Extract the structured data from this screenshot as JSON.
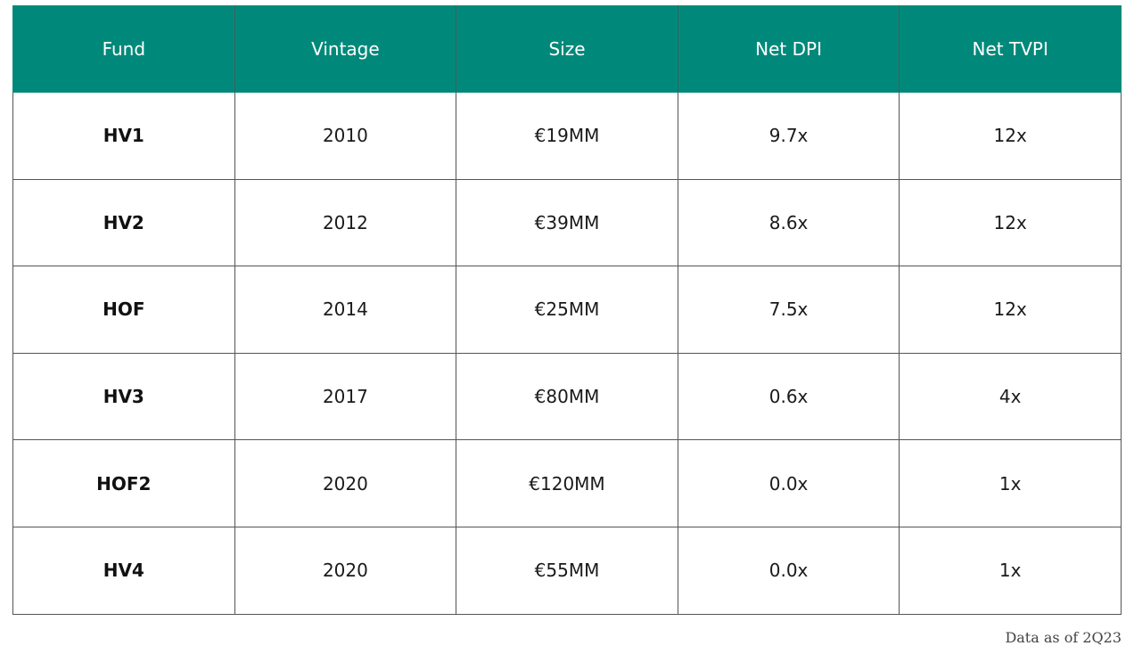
{
  "table": {
    "columns": [
      "Fund",
      "Vintage",
      "Size",
      "Net DPI",
      "Net TVPI"
    ],
    "rows": [
      {
        "fund": "HV1",
        "vintage": "2010",
        "size": "€19MM",
        "net_dpi": "9.7x",
        "net_tvpi": "12x"
      },
      {
        "fund": "HV2",
        "vintage": "2012",
        "size": "€39MM",
        "net_dpi": "8.6x",
        "net_tvpi": "12x"
      },
      {
        "fund": "HOF",
        "vintage": "2014",
        "size": "€25MM",
        "net_dpi": "7.5x",
        "net_tvpi": "12x"
      },
      {
        "fund": "HV3",
        "vintage": "2017",
        "size": "€80MM",
        "net_dpi": "0.6x",
        "net_tvpi": "4x"
      },
      {
        "fund": "HOF2",
        "vintage": "2020",
        "size": "€120MM",
        "net_dpi": "0.0x",
        "net_tvpi": "1x"
      },
      {
        "fund": "HV4",
        "vintage": "2020",
        "size": "€55MM",
        "net_dpi": "0.0x",
        "net_tvpi": "1x"
      }
    ]
  },
  "footnote": "Data as of 2Q23",
  "colors": {
    "header_bg": "#00897a",
    "header_text": "#ffffff",
    "grid": "#555555"
  }
}
